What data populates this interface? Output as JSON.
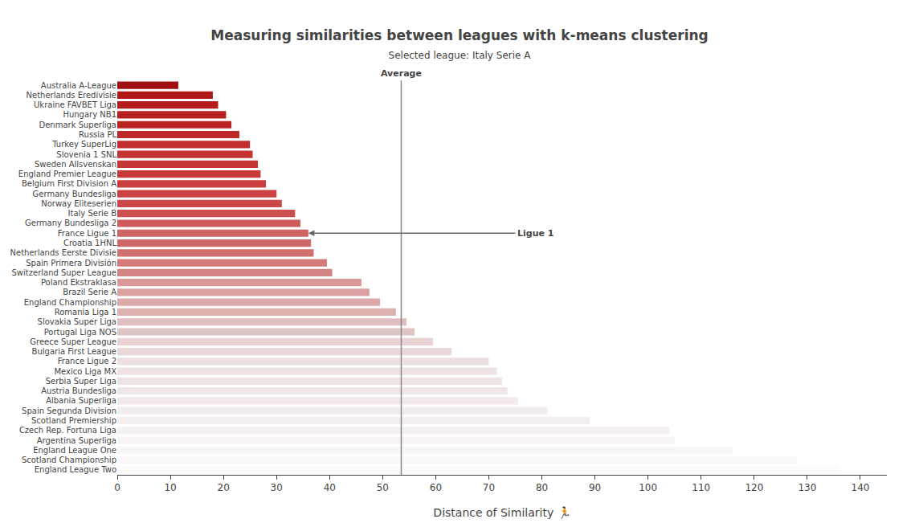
{
  "chart_data": {
    "type": "bar",
    "orientation": "horizontal",
    "title": "Measuring similarities between leagues with k-means clustering",
    "subtitle": "Selected league: Italy Serie A",
    "xlabel": "Distance of Similarity 🏃",
    "categories": [
      "Australia A-League",
      "Netherlands Eredivisie",
      "Ukraine FAVBET Liga",
      "Hungary NB1",
      "Denmark Superliga",
      "Russia PL",
      "Turkey SuperLig",
      "Slovenia 1 SNL",
      "Sweden Allsvenskan",
      "England Premier League",
      "Belgium First Division A",
      "Germany Bundesliga",
      "Norway Eliteserien",
      "Italy Serie B",
      "Germany Bundesliga 2",
      "France Ligue 1",
      "Croatia 1HNL",
      "Netherlands Eerste Divisie",
      "Spain Primera División",
      "Switzerland Super League",
      "Poland Ekstraklasa",
      "Brazil Serie A",
      "England Championship",
      "Romania Liga 1",
      "Slovakia Super Liga",
      "Portugal Liga NOS",
      "Greece Super League",
      "Bulgaria First League",
      "France Ligue 2",
      "Mexico Liga MX",
      "Serbia Super Liga",
      "Austria Bundesliga",
      "Albania Superliga",
      "Spain Segunda Division",
      "Scotland Premiership",
      "Czech Rep. Fortuna Liga",
      "Argentina Superliga",
      "England League One",
      "Scotland Championship",
      "England League Two"
    ],
    "values": [
      11.5,
      18.0,
      19.0,
      20.5,
      21.5,
      23.0,
      25.0,
      25.5,
      26.5,
      27.0,
      28.0,
      30.0,
      31.0,
      33.5,
      34.5,
      36.0,
      36.5,
      37.0,
      39.5,
      40.5,
      46.0,
      47.5,
      49.5,
      52.5,
      54.5,
      56.0,
      59.5,
      63.0,
      70.0,
      71.5,
      72.5,
      73.5,
      75.5,
      81.0,
      89.0,
      104.0,
      105.0,
      116.0,
      128.0,
      136.0
    ],
    "colors": [
      "#a01010",
      "#b01818",
      "#b41c1c",
      "#b82020",
      "#bc2424",
      "#be2828",
      "#c22e2e",
      "#c43232",
      "#c63636",
      "#c83a3a",
      "#ca3e3e",
      "#cc4242",
      "#cc4848",
      "#cd5050",
      "#ce5a5a",
      "#cf6464",
      "#cf6868",
      "#d07070",
      "#d47c7c",
      "#d58484",
      "#da9898",
      "#dba0a0",
      "#dcaaaa",
      "#ddb0b0",
      "#debebe",
      "#dfc4c4",
      "#e8d2d2",
      "#ead8d8",
      "#ede0e0",
      "#eee2e2",
      "#efe4e4",
      "#f0e6e6",
      "#f2eaea",
      "#f3ecec",
      "#f4eeee",
      "#f5f0f0",
      "#f7f3f3",
      "#f8f5f5",
      "#faf8f8",
      "#fcfafa"
    ],
    "xlim": [
      0,
      145
    ],
    "xticks": [
      0,
      10,
      20,
      30,
      40,
      50,
      60,
      70,
      80,
      90,
      100,
      110,
      120,
      130,
      140
    ],
    "grid": false,
    "reference_line": {
      "x": 53.5,
      "label": "Average"
    },
    "annotations": [
      {
        "text": "Ligue 1",
        "category": "France Ligue 1",
        "x": 75,
        "arrow_to": 36.0
      }
    ]
  }
}
